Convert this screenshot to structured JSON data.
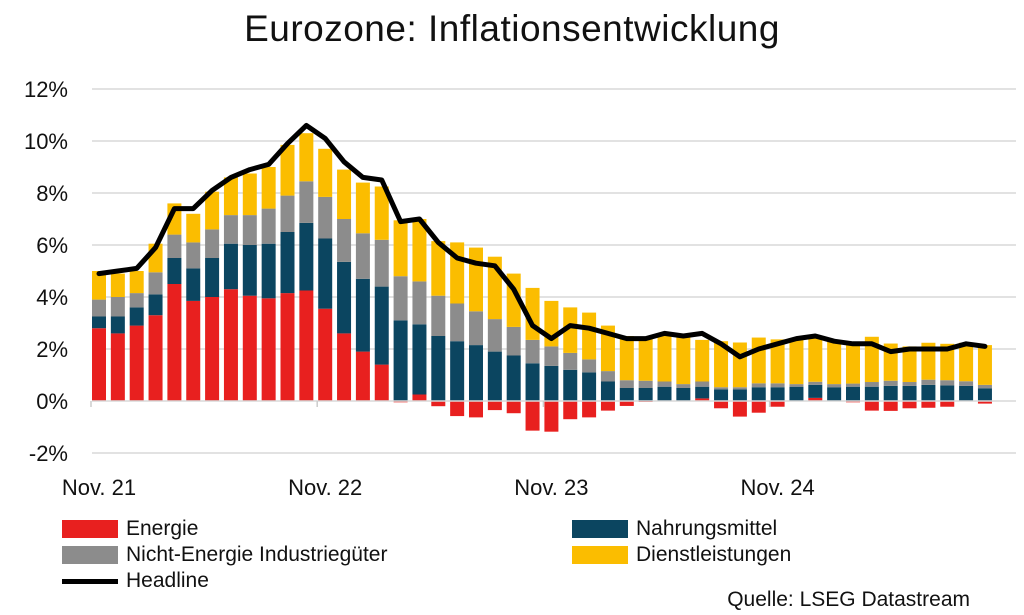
{
  "chart_data": {
    "type": "bar",
    "stacked": true,
    "title": "Eurozone: Inflationsentwicklung",
    "source": "Quelle: LSEG Datastream",
    "ylim": [
      -2,
      12
    ],
    "yticks": [
      -2,
      0,
      2,
      4,
      6,
      8,
      10,
      12
    ],
    "ytick_labels": [
      "-2%",
      "0%",
      "2%",
      "4%",
      "6%",
      "8%",
      "10%",
      "12%"
    ],
    "grid": true,
    "legend_position": "bottom",
    "xtick_labels": [
      {
        "index": 0,
        "label": "Nov. 21"
      },
      {
        "index": 12,
        "label": "Nov. 22"
      },
      {
        "index": 24,
        "label": "Nov. 23"
      },
      {
        "index": 36,
        "label": "Nov. 24"
      }
    ],
    "categories": [
      "2021-11",
      "2021-12",
      "2022-01",
      "2022-02",
      "2022-03",
      "2022-04",
      "2022-05",
      "2022-06",
      "2022-07",
      "2022-08",
      "2022-09",
      "2022-10",
      "2022-11",
      "2022-12",
      "2023-01",
      "2023-02",
      "2023-03",
      "2023-04",
      "2023-05",
      "2023-06",
      "2023-07",
      "2023-08",
      "2023-09",
      "2023-10",
      "2023-11",
      "2023-12",
      "2024-01",
      "2024-02",
      "2024-03",
      "2024-04",
      "2024-05",
      "2024-06",
      "2024-07",
      "2024-08",
      "2024-09",
      "2024-10",
      "2024-11",
      "2024-12",
      "2025-01",
      "2025-02",
      "2025-03",
      "2025-04",
      "2025-05",
      "2025-06",
      "2025-07",
      "2025-08",
      "2025-09",
      "2025-10"
    ],
    "series": [
      {
        "name": "Energie",
        "color": "#e8201f",
        "kind": "bar",
        "values": [
          2.8,
          2.6,
          2.9,
          3.3,
          4.5,
          3.85,
          4.0,
          4.3,
          4.05,
          3.95,
          4.15,
          4.25,
          3.55,
          2.6,
          1.9,
          1.4,
          -0.05,
          0.25,
          -0.2,
          -0.58,
          -0.63,
          -0.35,
          -0.47,
          -1.14,
          -1.18,
          -0.7,
          -0.63,
          -0.37,
          -0.19,
          -0.02,
          0.0,
          0.0,
          0.1,
          -0.28,
          -0.6,
          -0.45,
          -0.22,
          0.0,
          0.12,
          0.0,
          -0.05,
          -0.37,
          -0.38,
          -0.28,
          -0.26,
          -0.22,
          0.0,
          -0.1
        ]
      },
      {
        "name": "Nahrungsmittel",
        "color": "#0b4560",
        "kind": "bar",
        "values": [
          0.45,
          0.65,
          0.7,
          0.8,
          1.0,
          1.25,
          1.5,
          1.75,
          1.95,
          2.1,
          2.35,
          2.6,
          2.7,
          2.75,
          2.8,
          3.0,
          3.1,
          2.7,
          2.5,
          2.3,
          2.15,
          1.9,
          1.75,
          1.45,
          1.35,
          1.2,
          1.1,
          0.75,
          0.5,
          0.5,
          0.55,
          0.5,
          0.45,
          0.45,
          0.45,
          0.53,
          0.53,
          0.55,
          0.5,
          0.53,
          0.55,
          0.55,
          0.58,
          0.58,
          0.62,
          0.6,
          0.58,
          0.49
        ]
      },
      {
        "name": "Nicht-Energie Industriegüter",
        "color": "#8c8c8c",
        "kind": "bar",
        "values": [
          0.65,
          0.75,
          0.55,
          0.85,
          0.9,
          1.0,
          1.1,
          1.1,
          1.15,
          1.35,
          1.4,
          1.6,
          1.6,
          1.65,
          1.75,
          1.8,
          1.7,
          1.65,
          1.55,
          1.45,
          1.3,
          1.25,
          1.1,
          0.9,
          0.75,
          0.65,
          0.5,
          0.4,
          0.3,
          0.28,
          0.2,
          0.15,
          0.2,
          0.08,
          0.08,
          0.15,
          0.15,
          0.1,
          0.12,
          0.12,
          0.12,
          0.18,
          0.2,
          0.15,
          0.2,
          0.2,
          0.18,
          0.13
        ]
      },
      {
        "name": "Dienstleistungen",
        "color": "#fbbd00",
        "kind": "bar",
        "values": [
          1.1,
          0.9,
          0.85,
          1.1,
          1.2,
          1.1,
          1.45,
          1.45,
          1.6,
          1.6,
          1.95,
          1.85,
          1.85,
          1.9,
          1.95,
          2.05,
          2.15,
          2.4,
          2.1,
          2.35,
          2.45,
          2.4,
          2.05,
          2.0,
          1.75,
          1.75,
          1.8,
          1.75,
          1.7,
          1.67,
          1.85,
          1.85,
          1.6,
          1.77,
          1.72,
          1.76,
          1.69,
          1.75,
          1.76,
          1.63,
          1.55,
          1.74,
          1.43,
          1.37,
          1.42,
          1.4,
          1.48,
          1.53
        ]
      },
      {
        "name": "Headline",
        "color": "#000000",
        "kind": "line",
        "values": [
          4.9,
          5.0,
          5.1,
          5.9,
          7.4,
          7.4,
          8.1,
          8.6,
          8.9,
          9.1,
          9.9,
          10.6,
          10.1,
          9.2,
          8.6,
          8.5,
          6.9,
          7.0,
          6.1,
          5.5,
          5.3,
          5.2,
          4.3,
          2.9,
          2.4,
          2.9,
          2.8,
          2.6,
          2.4,
          2.4,
          2.6,
          2.5,
          2.6,
          2.2,
          1.7,
          2.0,
          2.2,
          2.4,
          2.5,
          2.3,
          2.2,
          2.2,
          1.9,
          2.0,
          2.0,
          2.0,
          2.2,
          2.1
        ]
      }
    ]
  }
}
